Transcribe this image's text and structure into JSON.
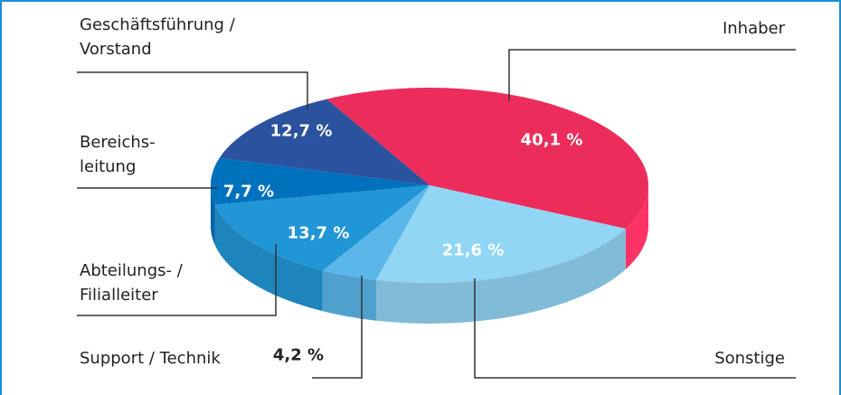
{
  "chart_data": {
    "type": "pie3d",
    "categories": [
      "Inhaber",
      "Sonstige",
      "Support / Technik",
      "Abteilungs- /\nFilialleiter",
      "Bereichs-\nleitung",
      "Geschäftsführung /\nVorstand"
    ],
    "values": [
      40.1,
      21.6,
      4.2,
      13.7,
      7.7,
      12.7
    ],
    "value_labels": [
      "40,1 %",
      "21,6 %",
      "4,2 %",
      "13,7 %",
      "7,7 %",
      "12,7 %"
    ],
    "colors": [
      "#ec2d5b",
      "#92d6f6",
      "#5bb6ea",
      "#2196d6",
      "#0072bd",
      "#2b529f"
    ]
  }
}
